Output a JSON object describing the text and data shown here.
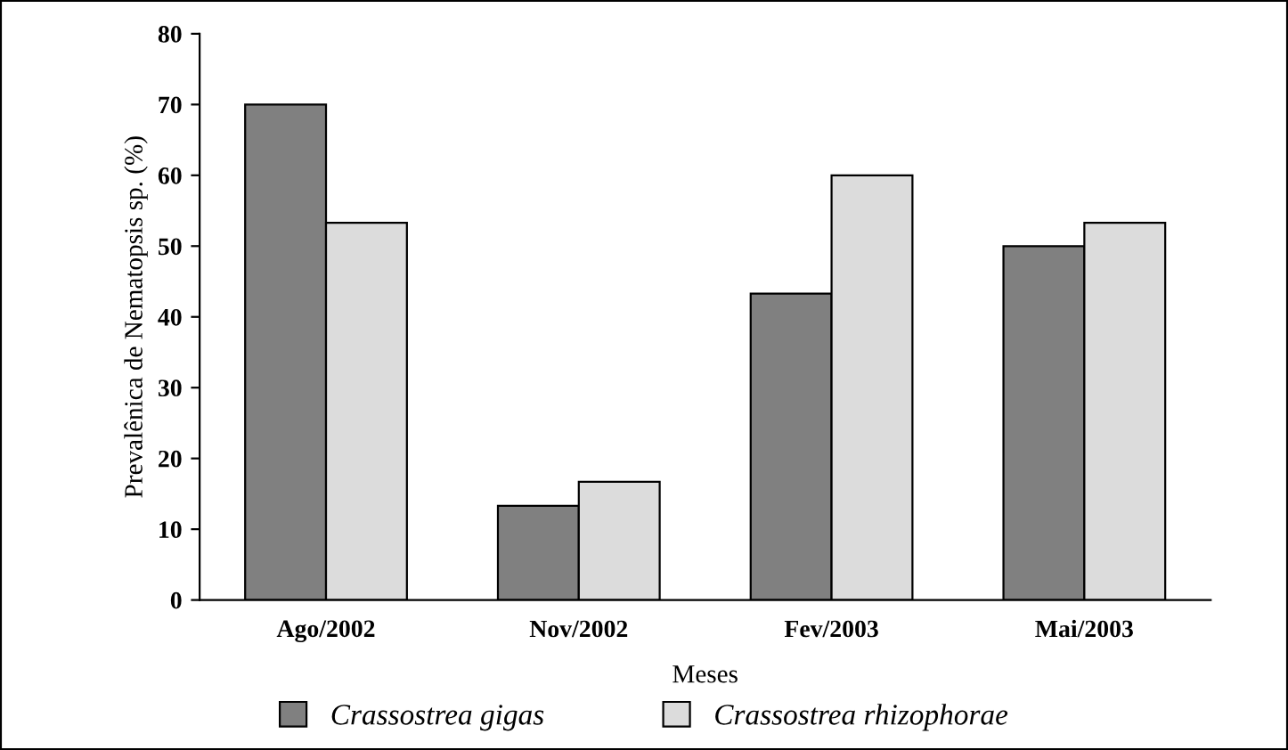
{
  "chart_data": {
    "type": "bar",
    "categories": [
      "Ago/2002",
      "Nov/2002",
      "Fev/2003",
      "Mai/2003"
    ],
    "series": [
      {
        "name": "Crassostrea gigas",
        "color": "#808080",
        "values": [
          70,
          13.3,
          43.3,
          50
        ]
      },
      {
        "name": "Crassostrea rhizophorae",
        "color": "#dcdcdc",
        "values": [
          53.3,
          16.7,
          60,
          53.3
        ]
      }
    ],
    "xlabel": "Meses",
    "ylabel": "Prevalênica de Nematopsis sp. (%)",
    "ylim": [
      0,
      80
    ],
    "yticks": [
      0,
      10,
      20,
      30,
      40,
      50,
      60,
      70,
      80
    ],
    "grid": false,
    "legend": "bottom"
  }
}
